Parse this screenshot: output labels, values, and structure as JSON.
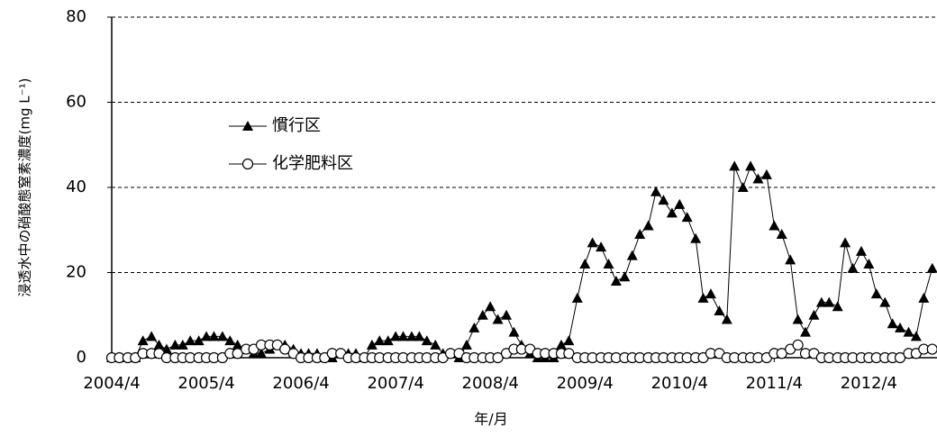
{
  "chart_data": {
    "type": "line",
    "y_label": "浸透水中の硝酸態窒素濃度(mg L⁻¹)",
    "x_label": "年/月",
    "x": [
      2004.25,
      2004.33,
      2004.42,
      2004.5,
      2004.58,
      2004.67,
      2004.75,
      2004.83,
      2004.92,
      2005.0,
      2005.08,
      2005.17,
      2005.25,
      2005.33,
      2005.42,
      2005.5,
      2005.58,
      2005.67,
      2005.75,
      2005.83,
      2005.92,
      2006.0,
      2006.08,
      2006.17,
      2006.25,
      2006.33,
      2006.42,
      2006.5,
      2006.58,
      2006.67,
      2006.75,
      2006.83,
      2006.92,
      2007.0,
      2007.08,
      2007.17,
      2007.25,
      2007.33,
      2007.42,
      2007.5,
      2007.58,
      2007.67,
      2007.75,
      2007.83,
      2007.92,
      2008.0,
      2008.08,
      2008.17,
      2008.25,
      2008.33,
      2008.42,
      2008.5,
      2008.58,
      2008.67,
      2008.75,
      2008.83,
      2008.92,
      2009.0,
      2009.08,
      2009.17,
      2009.25,
      2009.33,
      2009.42,
      2009.5,
      2009.58,
      2009.67,
      2009.75,
      2009.83,
      2009.92,
      2010.0,
      2010.08,
      2010.17,
      2010.25,
      2010.33,
      2010.42,
      2010.5,
      2010.58,
      2010.67,
      2010.75,
      2010.83,
      2010.92,
      2011.0,
      2011.08,
      2011.17,
      2011.25,
      2011.33,
      2011.42,
      2011.5,
      2011.58,
      2011.67,
      2011.75,
      2011.83,
      2011.92,
      2012.0,
      2012.08,
      2012.17,
      2012.25,
      2012.33,
      2012.42,
      2012.5,
      2012.58,
      2012.67,
      2012.75,
      2012.83,
      2012.92
    ],
    "series": [
      {
        "name": "慣行区",
        "color": "#000000",
        "marker": "triangle",
        "values": [
          0,
          0,
          0,
          0,
          4,
          5,
          3,
          2,
          3,
          3,
          4,
          4,
          5,
          5,
          5,
          4,
          3,
          2,
          1,
          1,
          2,
          3,
          3,
          2,
          1,
          1,
          1,
          0,
          0,
          1,
          1,
          1,
          0,
          3,
          4,
          4,
          5,
          5,
          5,
          5,
          4,
          3,
          1,
          1,
          0,
          3,
          7,
          10,
          12,
          9,
          10,
          6,
          3,
          1,
          0,
          0,
          0,
          3,
          4,
          14,
          22,
          27,
          26,
          22,
          18,
          19,
          24,
          29,
          31,
          39,
          37,
          34,
          36,
          33,
          28,
          14,
          15,
          11,
          9,
          45,
          40,
          45,
          42,
          43,
          31,
          29,
          23,
          9,
          6,
          10,
          13,
          13,
          12,
          27,
          21,
          25,
          22,
          15,
          13,
          8,
          7,
          6,
          5,
          14,
          21
        ]
      },
      {
        "name": "化学肥料区",
        "color": "#000000",
        "marker": "circle",
        "values": [
          0,
          0,
          0,
          0,
          1,
          1,
          1,
          0,
          0,
          0,
          0,
          0,
          0,
          0,
          0,
          1,
          1,
          2,
          2,
          3,
          3,
          3,
          2,
          1,
          0,
          0,
          0,
          0,
          1,
          1,
          0,
          0,
          0,
          0,
          0,
          0,
          0,
          0,
          0,
          0,
          0,
          0,
          0,
          1,
          1,
          0,
          0,
          0,
          0,
          0,
          1,
          2,
          2,
          2,
          1,
          1,
          1,
          1,
          1,
          0,
          0,
          0,
          0,
          0,
          0,
          0,
          0,
          0,
          0,
          0,
          0,
          0,
          0,
          0,
          0,
          0,
          1,
          1,
          0,
          0,
          0,
          0,
          0,
          0,
          1,
          1,
          2,
          3,
          1,
          1,
          0,
          0,
          0,
          0,
          0,
          0,
          0,
          0,
          0,
          0,
          0,
          1,
          1,
          2,
          2
        ]
      }
    ],
    "xlim": [
      2004.25,
      2012.97
    ],
    "xticks": [
      {
        "value": 2004.25,
        "label": "2004/4"
      },
      {
        "value": 2005.25,
        "label": "2005/4"
      },
      {
        "value": 2006.25,
        "label": "2006/4"
      },
      {
        "value": 2007.25,
        "label": "2007/4"
      },
      {
        "value": 2008.25,
        "label": "2008/4"
      },
      {
        "value": 2009.25,
        "label": "2009/4"
      },
      {
        "value": 2010.25,
        "label": "2010/4"
      },
      {
        "value": 2011.25,
        "label": "2011/4"
      },
      {
        "value": 2012.25,
        "label": "2012/4"
      }
    ],
    "ylim": [
      0,
      80
    ],
    "yticks": [
      0,
      20,
      40,
      60,
      80
    ],
    "grid": true
  }
}
